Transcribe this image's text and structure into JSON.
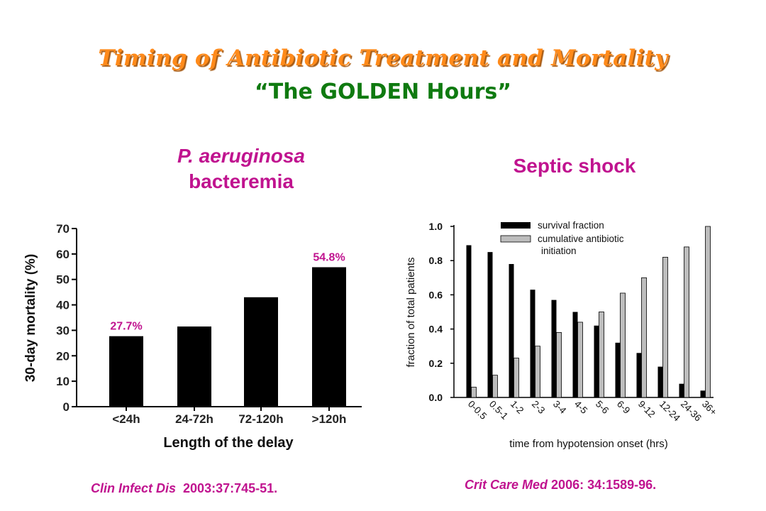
{
  "slide": {
    "title": "Timing of Antibiotic Treatment and Mortality",
    "subtitle": "“The GOLDEN Hours”"
  },
  "left_panel": {
    "title_line1": "P. aeruginosa",
    "title_line2": "bacteremia",
    "citation_journal": "Clin Infect Dis",
    "citation_ref": "2003:37:745-51."
  },
  "right_panel": {
    "title": "Septic shock",
    "citation_journal": "Crit Care Med",
    "citation_ref": "2006: 34:1589-96."
  },
  "colors": {
    "title_orange": "#ff8a1a",
    "subtitle_green": "#0f7a10",
    "magenta": "#c0138f",
    "bar_black": "#000000",
    "bar_gray": "#bdbdbd"
  },
  "chart_data": [
    {
      "type": "bar",
      "categories": [
        "<24h",
        "24-72h",
        "72-120h",
        ">120h"
      ],
      "values": [
        27.7,
        31.5,
        43.0,
        54.8
      ],
      "data_labels": [
        "27.7%",
        "",
        "",
        "54.8%"
      ],
      "xlabel": "Length of the delay",
      "ylabel": "30-day mortality (%)",
      "ylim": [
        0,
        70
      ],
      "yticks": [
        "0",
        "10",
        "20",
        "30",
        "40",
        "50",
        "60",
        "70"
      ],
      "grid": false,
      "legend": "none"
    },
    {
      "type": "bar",
      "categories": [
        "0-0.5",
        "0.5-1",
        "1-2",
        "2-3",
        "3-4",
        "4-5",
        "5-6",
        "6-9",
        "9-12",
        "12-24",
        "24-36",
        "36+"
      ],
      "series": [
        {
          "name": "survival fraction",
          "values": [
            0.89,
            0.85,
            0.78,
            0.63,
            0.57,
            0.5,
            0.42,
            0.32,
            0.26,
            0.18,
            0.08,
            0.04
          ]
        },
        {
          "name": "cumulative antibiotic initiation",
          "values": [
            0.06,
            0.13,
            0.23,
            0.3,
            0.38,
            0.44,
            0.5,
            0.61,
            0.7,
            0.82,
            0.88,
            1.0
          ]
        }
      ],
      "xlabel": "time from hypotension onset (hrs)",
      "ylabel": "fraction of total patients",
      "ylim": [
        0,
        1.0
      ],
      "yticks": [
        "0.0",
        "0.2",
        "0.4",
        "0.6",
        "0.8",
        "1.0"
      ],
      "legend_line1": "survival fraction",
      "legend_line2a": "cumulative antibiotic",
      "legend_line2b": "initiation",
      "legend_position": "top-center",
      "grid": false
    }
  ]
}
